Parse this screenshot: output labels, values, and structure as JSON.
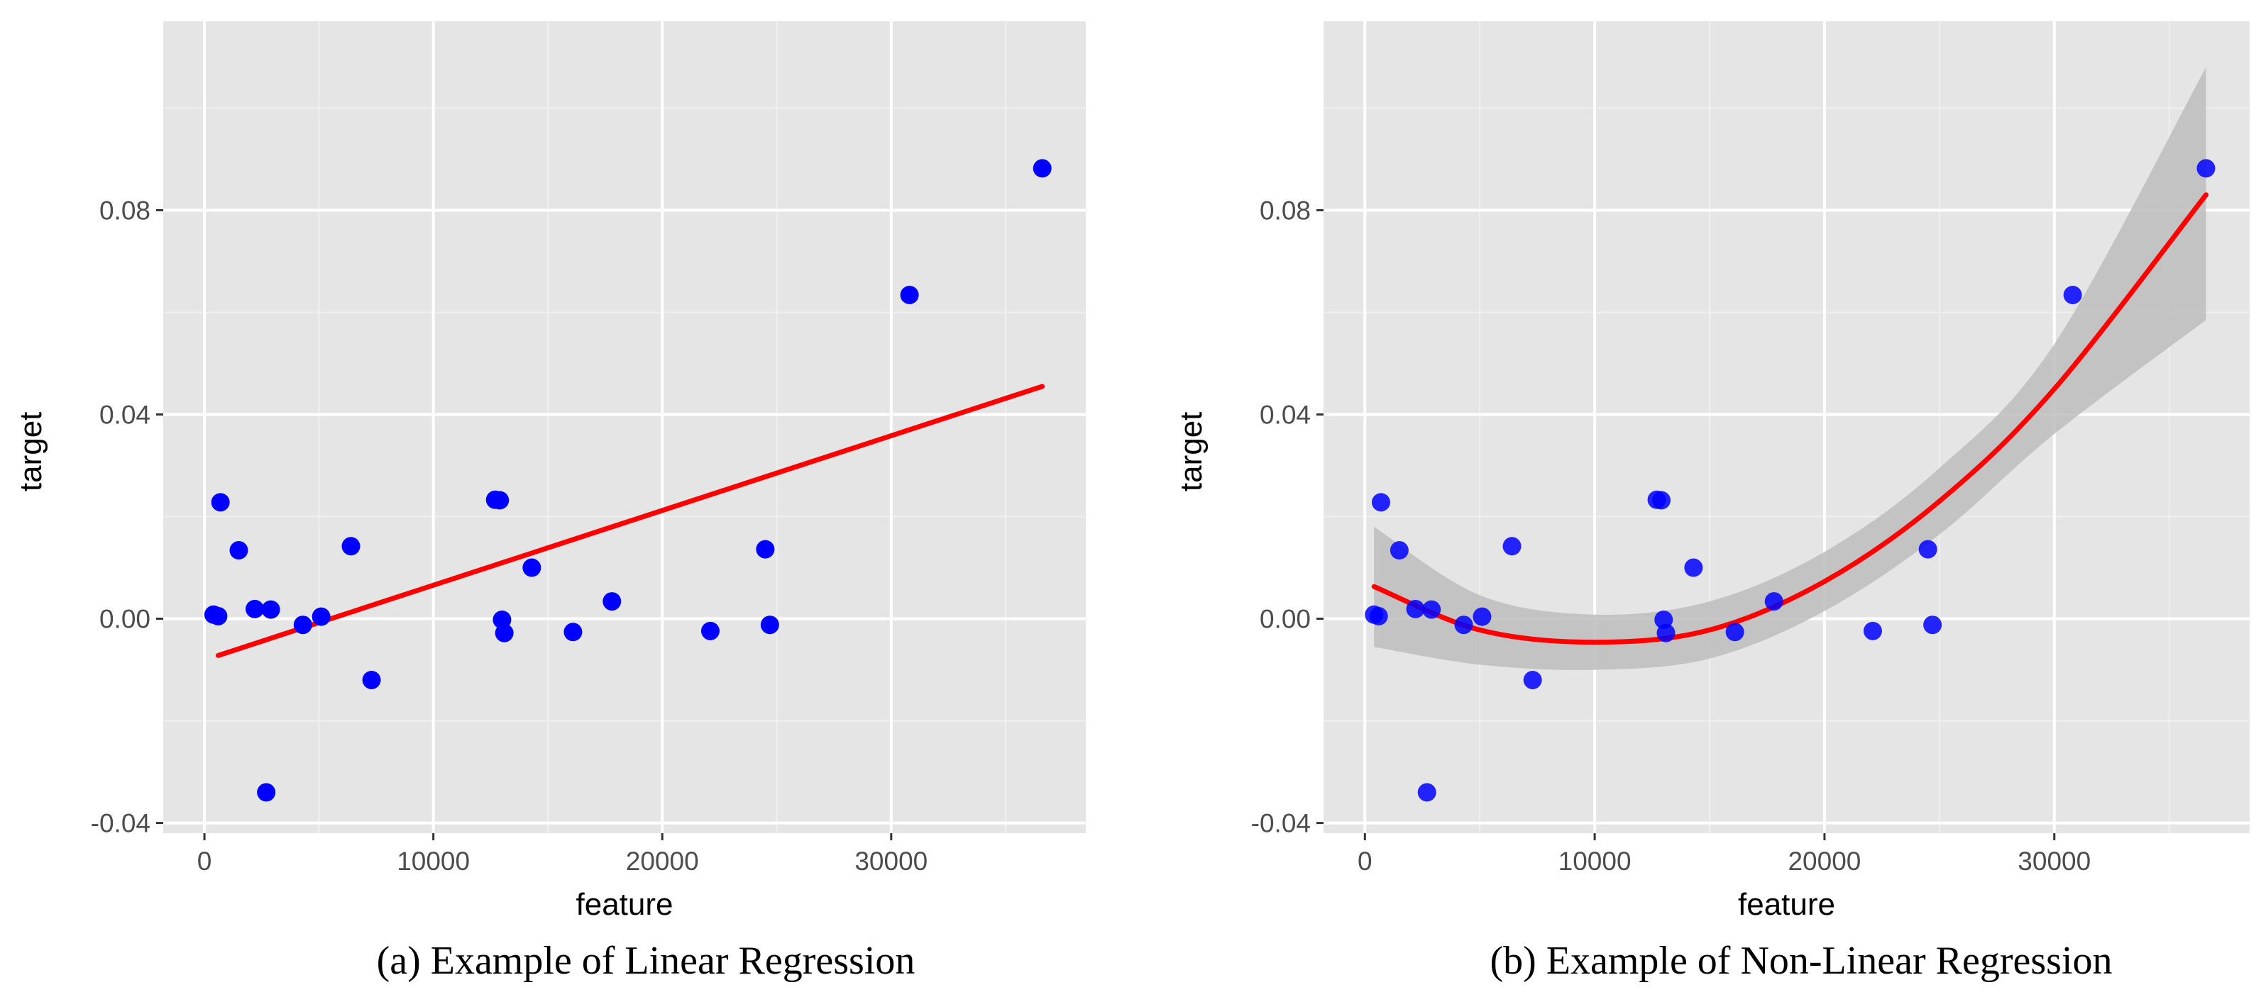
{
  "colors": {
    "panel_background": "#e5e5e5",
    "grid_major": "#ffffff",
    "grid_minor": "#f0f0f0",
    "point": "#0000ff",
    "fit_line": "#ff0000",
    "ribbon": "#bdbdbd",
    "tick_text": "#4d4d4d",
    "text": "#000000"
  },
  "chart_data": [
    {
      "type": "scatter",
      "panel_id": "a",
      "caption": "(a)   Example of Linear Regression",
      "xlabel": "feature",
      "ylabel": "target",
      "xlim": [
        -1800,
        38500
      ],
      "ylim": [
        -0.042,
        0.117
      ],
      "x_ticks": [
        0,
        10000,
        20000,
        30000
      ],
      "x_tick_labels": [
        "0",
        "10000",
        "20000",
        "30000"
      ],
      "y_ticks": [
        -0.04,
        0.0,
        0.04,
        0.08
      ],
      "y_tick_labels": [
        "-0.04",
        "0.00",
        "0.04",
        "0.08"
      ],
      "points": [
        {
          "x": 400,
          "y": 0.0008
        },
        {
          "x": 600,
          "y": 0.0005
        },
        {
          "x": 700,
          "y": 0.0228
        },
        {
          "x": 1500,
          "y": 0.0134
        },
        {
          "x": 2200,
          "y": 0.0019
        },
        {
          "x": 2700,
          "y": -0.034
        },
        {
          "x": 2900,
          "y": 0.0018
        },
        {
          "x": 4300,
          "y": -0.0012
        },
        {
          "x": 5100,
          "y": 0.0004
        },
        {
          "x": 6400,
          "y": 0.0142
        },
        {
          "x": 7300,
          "y": -0.012
        },
        {
          "x": 12700,
          "y": 0.0233
        },
        {
          "x": 12900,
          "y": 0.0232
        },
        {
          "x": 13000,
          "y": -0.0002
        },
        {
          "x": 13100,
          "y": -0.0028
        },
        {
          "x": 14300,
          "y": 0.01
        },
        {
          "x": 16100,
          "y": -0.0026
        },
        {
          "x": 17800,
          "y": 0.0034
        },
        {
          "x": 22100,
          "y": -0.0024
        },
        {
          "x": 24500,
          "y": 0.0136
        },
        {
          "x": 24700,
          "y": -0.0012
        },
        {
          "x": 30800,
          "y": 0.0634
        },
        {
          "x": 36600,
          "y": 0.0882
        }
      ],
      "fit": {
        "method": "linear",
        "x": [
          600,
          36600
        ],
        "y": [
          -0.0072,
          0.0455
        ]
      }
    },
    {
      "type": "scatter",
      "panel_id": "b",
      "caption": "(b)   Example of Non-Linear Regression",
      "xlabel": "feature",
      "ylabel": "target",
      "xlim": [
        -1800,
        38500
      ],
      "ylim": [
        -0.042,
        0.117
      ],
      "x_ticks": [
        0,
        10000,
        20000,
        30000
      ],
      "x_tick_labels": [
        "0",
        "10000",
        "20000",
        "30000"
      ],
      "y_ticks": [
        -0.04,
        0.0,
        0.04,
        0.08
      ],
      "y_tick_labels": [
        "-0.04",
        "0.00",
        "0.04",
        "0.08"
      ],
      "points": [
        {
          "x": 400,
          "y": 0.0008
        },
        {
          "x": 600,
          "y": 0.0005
        },
        {
          "x": 700,
          "y": 0.0228
        },
        {
          "x": 1500,
          "y": 0.0134
        },
        {
          "x": 2200,
          "y": 0.0019
        },
        {
          "x": 2700,
          "y": -0.034
        },
        {
          "x": 2900,
          "y": 0.0018
        },
        {
          "x": 4300,
          "y": -0.0012
        },
        {
          "x": 5100,
          "y": 0.0004
        },
        {
          "x": 6400,
          "y": 0.0142
        },
        {
          "x": 7300,
          "y": -0.012
        },
        {
          "x": 12700,
          "y": 0.0233
        },
        {
          "x": 12900,
          "y": 0.0232
        },
        {
          "x": 13000,
          "y": -0.0002
        },
        {
          "x": 13100,
          "y": -0.0028
        },
        {
          "x": 14300,
          "y": 0.01
        },
        {
          "x": 16100,
          "y": -0.0026
        },
        {
          "x": 17800,
          "y": 0.0034
        },
        {
          "x": 22100,
          "y": -0.0024
        },
        {
          "x": 24500,
          "y": 0.0136
        },
        {
          "x": 24700,
          "y": -0.0012
        },
        {
          "x": 30800,
          "y": 0.0634
        },
        {
          "x": 36600,
          "y": 0.0882
        }
      ],
      "fit": {
        "method": "quadratic",
        "x": [
          400,
          5000,
          10000,
          15000,
          20000,
          25000,
          30000,
          36600
        ],
        "y": [
          0.0063,
          -0.0022,
          -0.0046,
          -0.0022,
          0.0073,
          0.023,
          0.045,
          0.083
        ],
        "lower": [
          -0.0055,
          -0.009,
          -0.01,
          -0.0078,
          0.0015,
          0.0165,
          0.0362,
          0.0585
        ],
        "upper": [
          0.018,
          0.0046,
          0.0008,
          0.0034,
          0.0131,
          0.0295,
          0.0538,
          0.108
        ]
      }
    }
  ]
}
